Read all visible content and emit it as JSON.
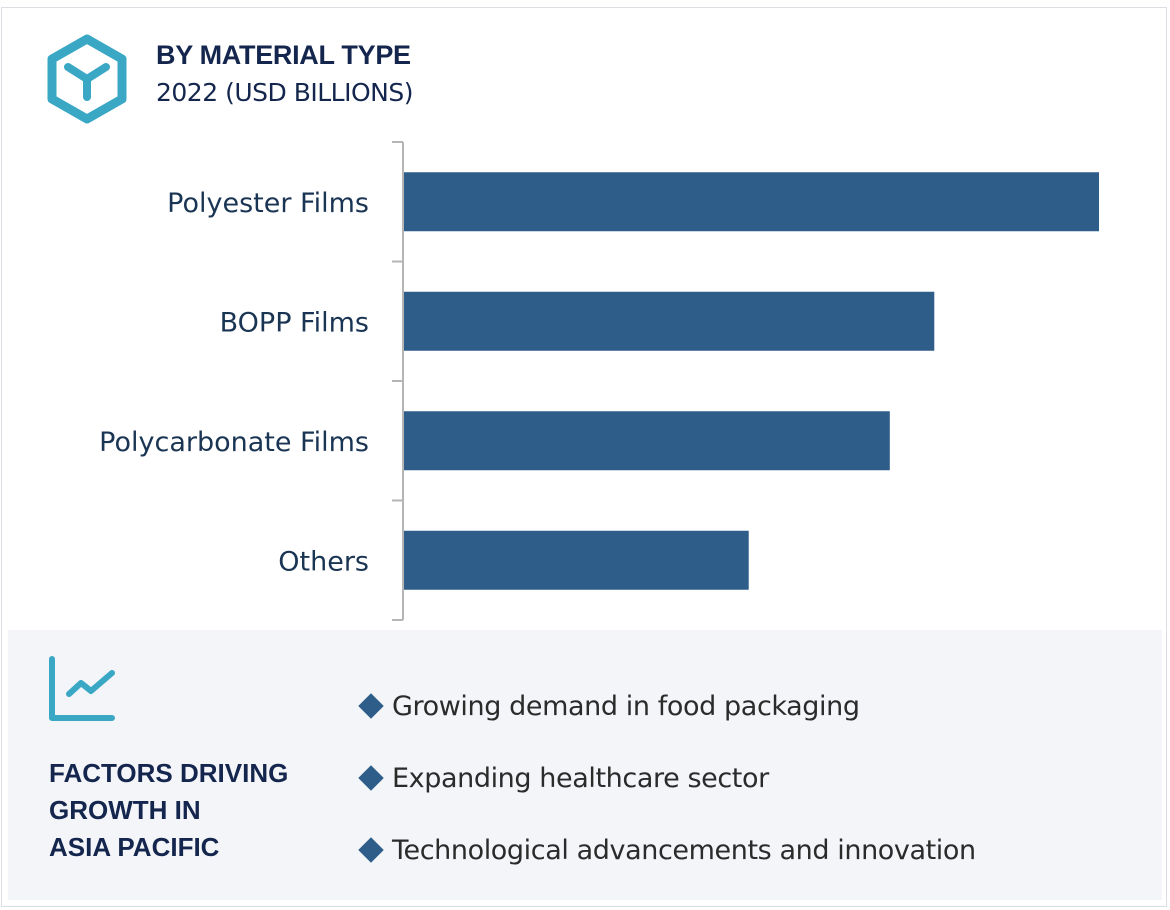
{
  "header": {
    "title": "BY MATERIAL TYPE",
    "subtitle": "2022 (USD BILLIONS)",
    "icon": "hexagon-cube-icon"
  },
  "chart_data": {
    "type": "bar",
    "orientation": "horizontal",
    "categories": [
      "Polyester Films",
      "BOPP Films",
      "Polycarbonate Films",
      "Others"
    ],
    "values": [
      100,
      76.3,
      69.9,
      49.6
    ],
    "value_note_scale": "relative (max = 100); no values printed",
    "title": "BY MATERIAL TYPE",
    "subtitle": "2022 (USD BILLIONS)",
    "xlabel": "",
    "ylabel": "",
    "grid": false,
    "bar_color": "#2e5d8a"
  },
  "factors": {
    "icon": "trend-chart-icon",
    "heading_lines": [
      "FACTORS DRIVING",
      "GROWTH IN",
      "ASIA PACIFIC"
    ],
    "items": [
      "Growing demand in food packaging",
      "Expanding healthcare sector",
      "Technological advancements and innovation"
    ]
  },
  "colors": {
    "accent": "#3aa8c5",
    "navy": "#14264d",
    "bar": "#2e5d8a",
    "panel": "#f3f5f9"
  }
}
